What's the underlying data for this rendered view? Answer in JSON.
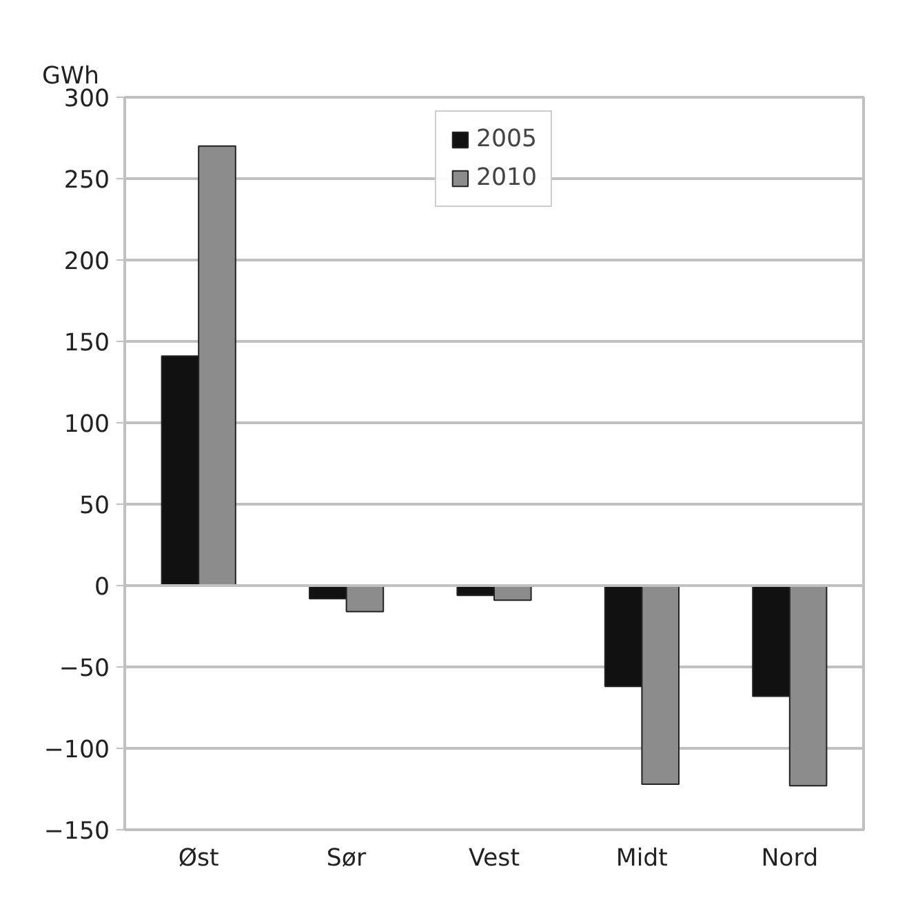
{
  "chart_data": {
    "type": "bar",
    "ylabel": "GWh",
    "categories": [
      "Øst",
      "Sør",
      "Vest",
      "Midt",
      "Nord"
    ],
    "series": [
      {
        "name": "2005",
        "color": "#111111",
        "values": [
          141,
          -8,
          -6,
          -62,
          -68
        ]
      },
      {
        "name": "2010",
        "color": "#8c8c8c",
        "values": [
          270,
          -16,
          -9,
          -122,
          -123
        ]
      }
    ],
    "ylim": [
      -150,
      300
    ],
    "yticks": [
      -150,
      -100,
      -50,
      0,
      50,
      100,
      150,
      200,
      250,
      300
    ],
    "grid": "y",
    "legend": "top"
  }
}
